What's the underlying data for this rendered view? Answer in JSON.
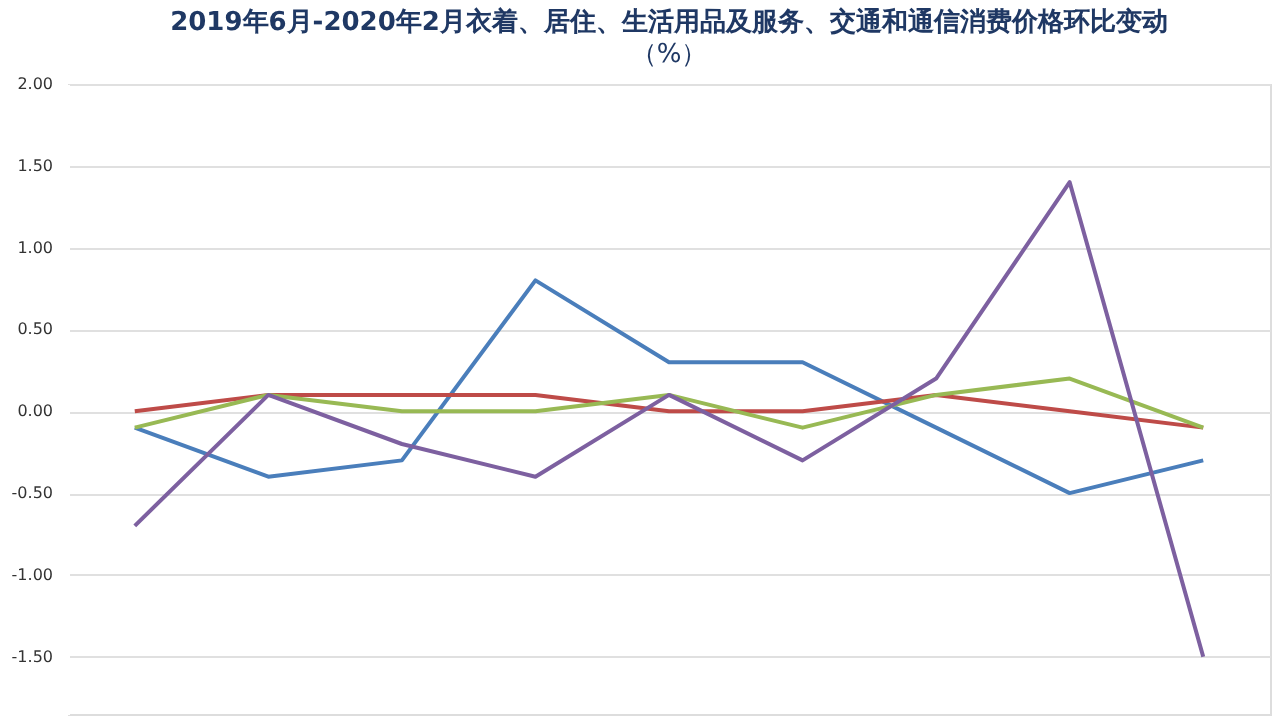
{
  "chart_data": {
    "type": "line",
    "title": "2019年6月-2020年2月衣着、居住、生活用品及服务、交通和通信消费价格环比变动",
    "subtitle": "（%）",
    "categories": [
      null,
      null,
      null,
      null,
      null,
      null,
      null,
      null,
      null
    ],
    "series": [
      {
        "color": "#4a7ebb",
        "values": [
          -0.1,
          -0.4,
          -0.3,
          0.8,
          0.3,
          0.3,
          -0.1,
          -0.5,
          -0.3
        ]
      },
      {
        "color": "#be4b48",
        "values": [
          0.0,
          0.1,
          0.1,
          0.1,
          0.0,
          0.0,
          0.1,
          0.0,
          -0.1
        ]
      },
      {
        "color": "#98b954",
        "values": [
          -0.1,
          0.1,
          0.0,
          0.0,
          0.1,
          -0.1,
          0.1,
          0.2,
          -0.1
        ]
      },
      {
        "color": "#7d60a0",
        "values": [
          -0.7,
          0.1,
          -0.2,
          -0.4,
          0.1,
          -0.3,
          0.2,
          1.4,
          -1.5
        ]
      }
    ],
    "ylim": [
      -1.85,
      2.0
    ],
    "yticks": [
      {
        "value": -1.5,
        "label": "-1.50"
      },
      {
        "value": -1.0,
        "label": "-1.00"
      },
      {
        "value": -0.5,
        "label": "-0.50"
      },
      {
        "value": 0.0,
        "label": "0.00"
      },
      {
        "value": 0.5,
        "label": "0.50"
      },
      {
        "value": 1.0,
        "label": "1.00"
      },
      {
        "value": 1.5,
        "label": "1.50"
      },
      {
        "value": 2.0,
        "label": "2.00"
      }
    ],
    "grid": "y",
    "legend": false,
    "marker": "none",
    "line_style": "solid",
    "tick_labels": "y"
  }
}
